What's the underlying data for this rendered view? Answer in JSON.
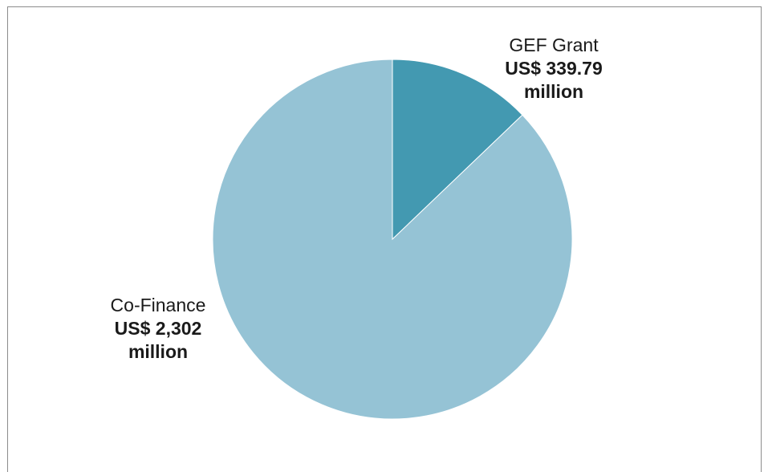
{
  "chart_data": {
    "type": "pie",
    "slices": [
      {
        "name": "GEF Grant",
        "value": 339.79,
        "amount_text": "US$ 339.79",
        "unit_text": "million",
        "color": "#4399b1"
      },
      {
        "name": "Co-Finance",
        "value": 2302,
        "amount_text": "US$ 2,302",
        "unit_text": "million",
        "color": "#95c3d5"
      }
    ],
    "legend": "none",
    "data_labels": "outside"
  }
}
